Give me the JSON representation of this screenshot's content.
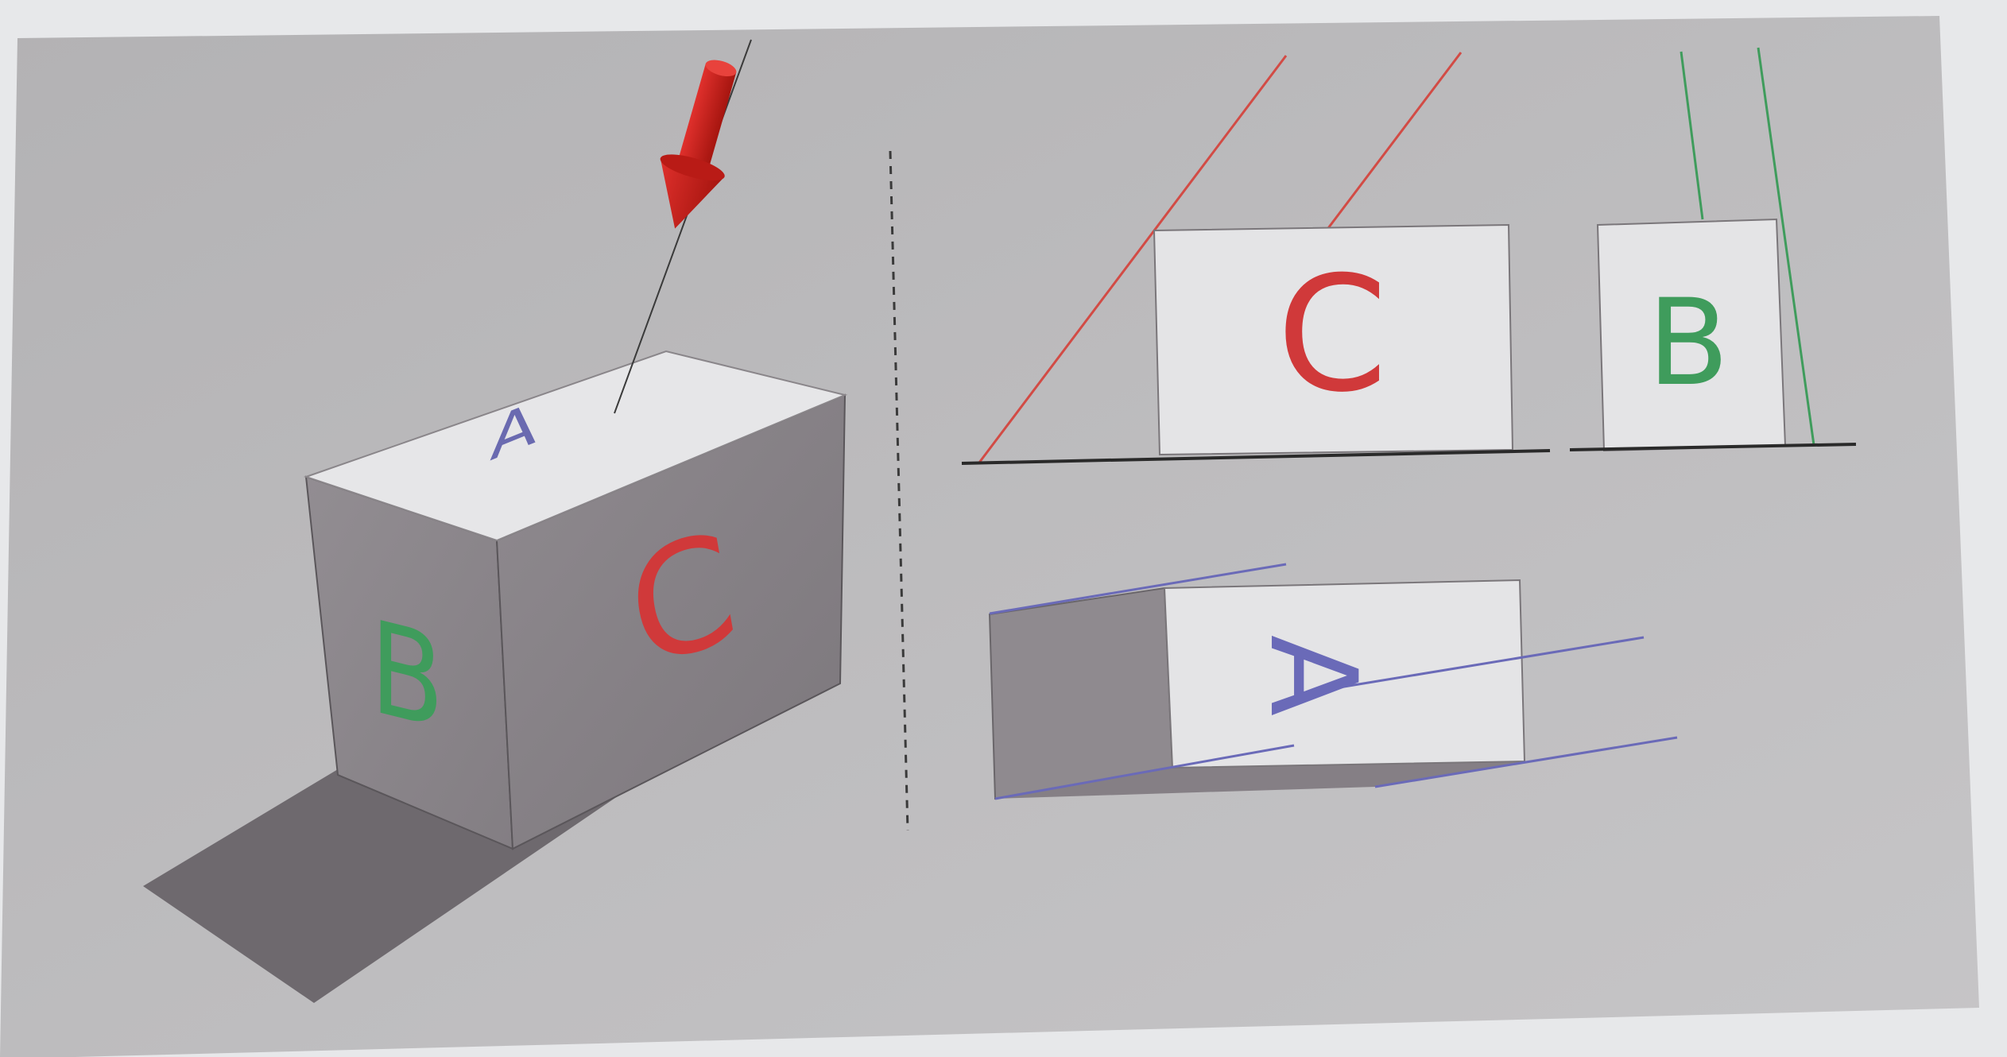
{
  "figure": {
    "perspective_view": {
      "top_face_label": "A",
      "front_face_label": "C",
      "side_face_label": "B"
    },
    "front_projection": {
      "face_label": "C"
    },
    "side_projection": {
      "face_label": "B"
    },
    "top_projection": {
      "face_label": "A"
    }
  },
  "colors": {
    "page_background": "#e7e8ea",
    "panel": "#b9b8ba",
    "face_light": "#e4e4e6",
    "face_dark": "#8c888c",
    "shadow": "#6f6a6f",
    "label_A": "#6a6ab0",
    "label_B": "#3f9c5c",
    "label_C": "#d0393a",
    "projection_C_lines": "#d24b45",
    "projection_B_lines": "#3f9c5c",
    "projection_A_lines": "#6a6ab8",
    "arrow": "#c8201f",
    "ground_line": "#2a2a2a"
  }
}
